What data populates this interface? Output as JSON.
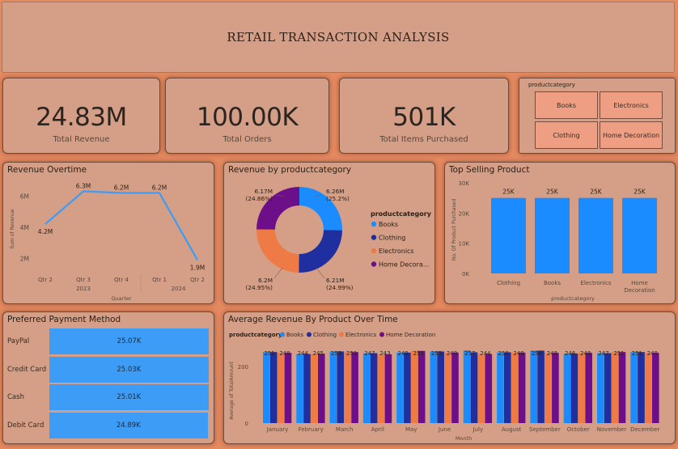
{
  "dashboard_title": "RETAIL TRANSACTION ANALYSIS",
  "kpis": {
    "revenue": {
      "value": "24.83M",
      "label": "Total Revenue"
    },
    "orders": {
      "value": "100.00K",
      "label": "Total Orders"
    },
    "items": {
      "value": "501K",
      "label": "Total Items Purchased"
    }
  },
  "slicer": {
    "title": "productcategory",
    "options": [
      "Books",
      "Electronics",
      "Clothing",
      "Home Decoration"
    ]
  },
  "colors": {
    "books": "#1a8cff",
    "clothing": "#1f2fa0",
    "electronics": "#ee7a45",
    "home_decoration": "#6e0f8a",
    "line": "#3d9cf5",
    "card_bg": "#d49f86"
  },
  "chart_data": [
    {
      "id": "revenue_overtime",
      "type": "line",
      "title": "Revenue Overtime",
      "x": [
        "Qtr 2",
        "Qtr 3",
        "Qtr 4",
        "Qtr 1",
        "Qtr 2"
      ],
      "x_groups": [
        {
          "label": "2023",
          "span": [
            0,
            2
          ]
        },
        {
          "label": "2024",
          "span": [
            3,
            4
          ]
        }
      ],
      "values": [
        4.2,
        6.3,
        6.2,
        6.2,
        1.9
      ],
      "data_labels": [
        "4.2M",
        "6.3M",
        "6.2M",
        "6.2M",
        "1.9M"
      ],
      "xlabel": "Quarter",
      "ylabel": "Sum of Revenue",
      "yticks": [
        "2M",
        "4M",
        "6M"
      ],
      "ylim": [
        1.5,
        7
      ]
    },
    {
      "id": "revenue_by_category",
      "type": "pie",
      "title": "Revenue by productcategory",
      "legend_title": "productcategory",
      "labels": [
        "Books",
        "Clothing",
        "Electronics",
        "Home Decora..."
      ],
      "values": [
        25.2,
        24.99,
        24.95,
        24.86
      ],
      "slice_labels": [
        "6.26M\n(25.2%)",
        "6.21M\n(24.99%)",
        "6.2M\n(24.95%)",
        "6.17M\n(24.86%)"
      ]
    },
    {
      "id": "top_selling_product",
      "type": "bar",
      "title": "Top Selling Product",
      "categories": [
        "Clothing",
        "Books",
        "Electronics",
        "Home Decoration"
      ],
      "values": [
        25,
        25,
        25,
        25
      ],
      "data_labels": [
        "25K",
        "25K",
        "25K",
        "25K"
      ],
      "xlabel": "productcategory",
      "ylabel": "No. Of Product Purchased",
      "yticks": [
        "0K",
        "10K",
        "20K",
        "30K"
      ],
      "ylim": [
        0,
        30
      ]
    },
    {
      "id": "preferred_payment_method",
      "type": "bar",
      "title": "Preferred Payment Method",
      "categories": [
        "PayPal",
        "Credit Card",
        "Cash",
        "Debit Card"
      ],
      "values": [
        25.07,
        25.03,
        25.01,
        24.89
      ],
      "data_labels": [
        "25.07K",
        "25.03K",
        "25.01K",
        "24.89K"
      ]
    },
    {
      "id": "avg_revenue_by_product",
      "type": "bar",
      "title": "Average Revenue By Product Over Time",
      "legend_title": "productcategory",
      "categories": [
        "January",
        "February",
        "March",
        "April",
        "May",
        "June",
        "July",
        "August",
        "September",
        "October",
        "November",
        "December"
      ],
      "series": [
        {
          "name": "Books",
          "values": [
            251,
            244,
            253,
            247,
            249,
            253,
            257,
            250,
            256,
            246,
            247,
            251
          ]
        },
        {
          "name": "Clothing",
          "values": [
            251,
            244,
            253,
            247,
            249,
            253,
            250,
            250,
            256,
            246,
            247,
            251
          ]
        },
        {
          "name": "Electronics",
          "values": [
            248,
            245,
            251,
            243,
            255,
            249,
            244,
            249,
            248,
            248,
            251,
            248
          ]
        },
        {
          "name": "Home Decoration",
          "values": [
            248,
            245,
            251,
            243,
            255,
            249,
            244,
            249,
            248,
            248,
            251,
            248
          ]
        }
      ],
      "data_label_pairs": [
        [
          "251",
          "248"
        ],
        [
          "244",
          "245"
        ],
        [
          "253",
          "251"
        ],
        [
          "247",
          "243"
        ],
        [
          "249",
          "255"
        ],
        [
          "253",
          "249"
        ],
        [
          "257",
          "244"
        ],
        [
          "250",
          "249"
        ],
        [
          "256",
          "248"
        ],
        [
          "246",
          "248"
        ],
        [
          "247",
          "251"
        ],
        [
          "251",
          "248"
        ]
      ],
      "xlabel": "Month",
      "ylabel": "Average of TotalAmount",
      "yticks": [
        "0",
        "200"
      ],
      "ylim": [
        0,
        300
      ]
    }
  ]
}
